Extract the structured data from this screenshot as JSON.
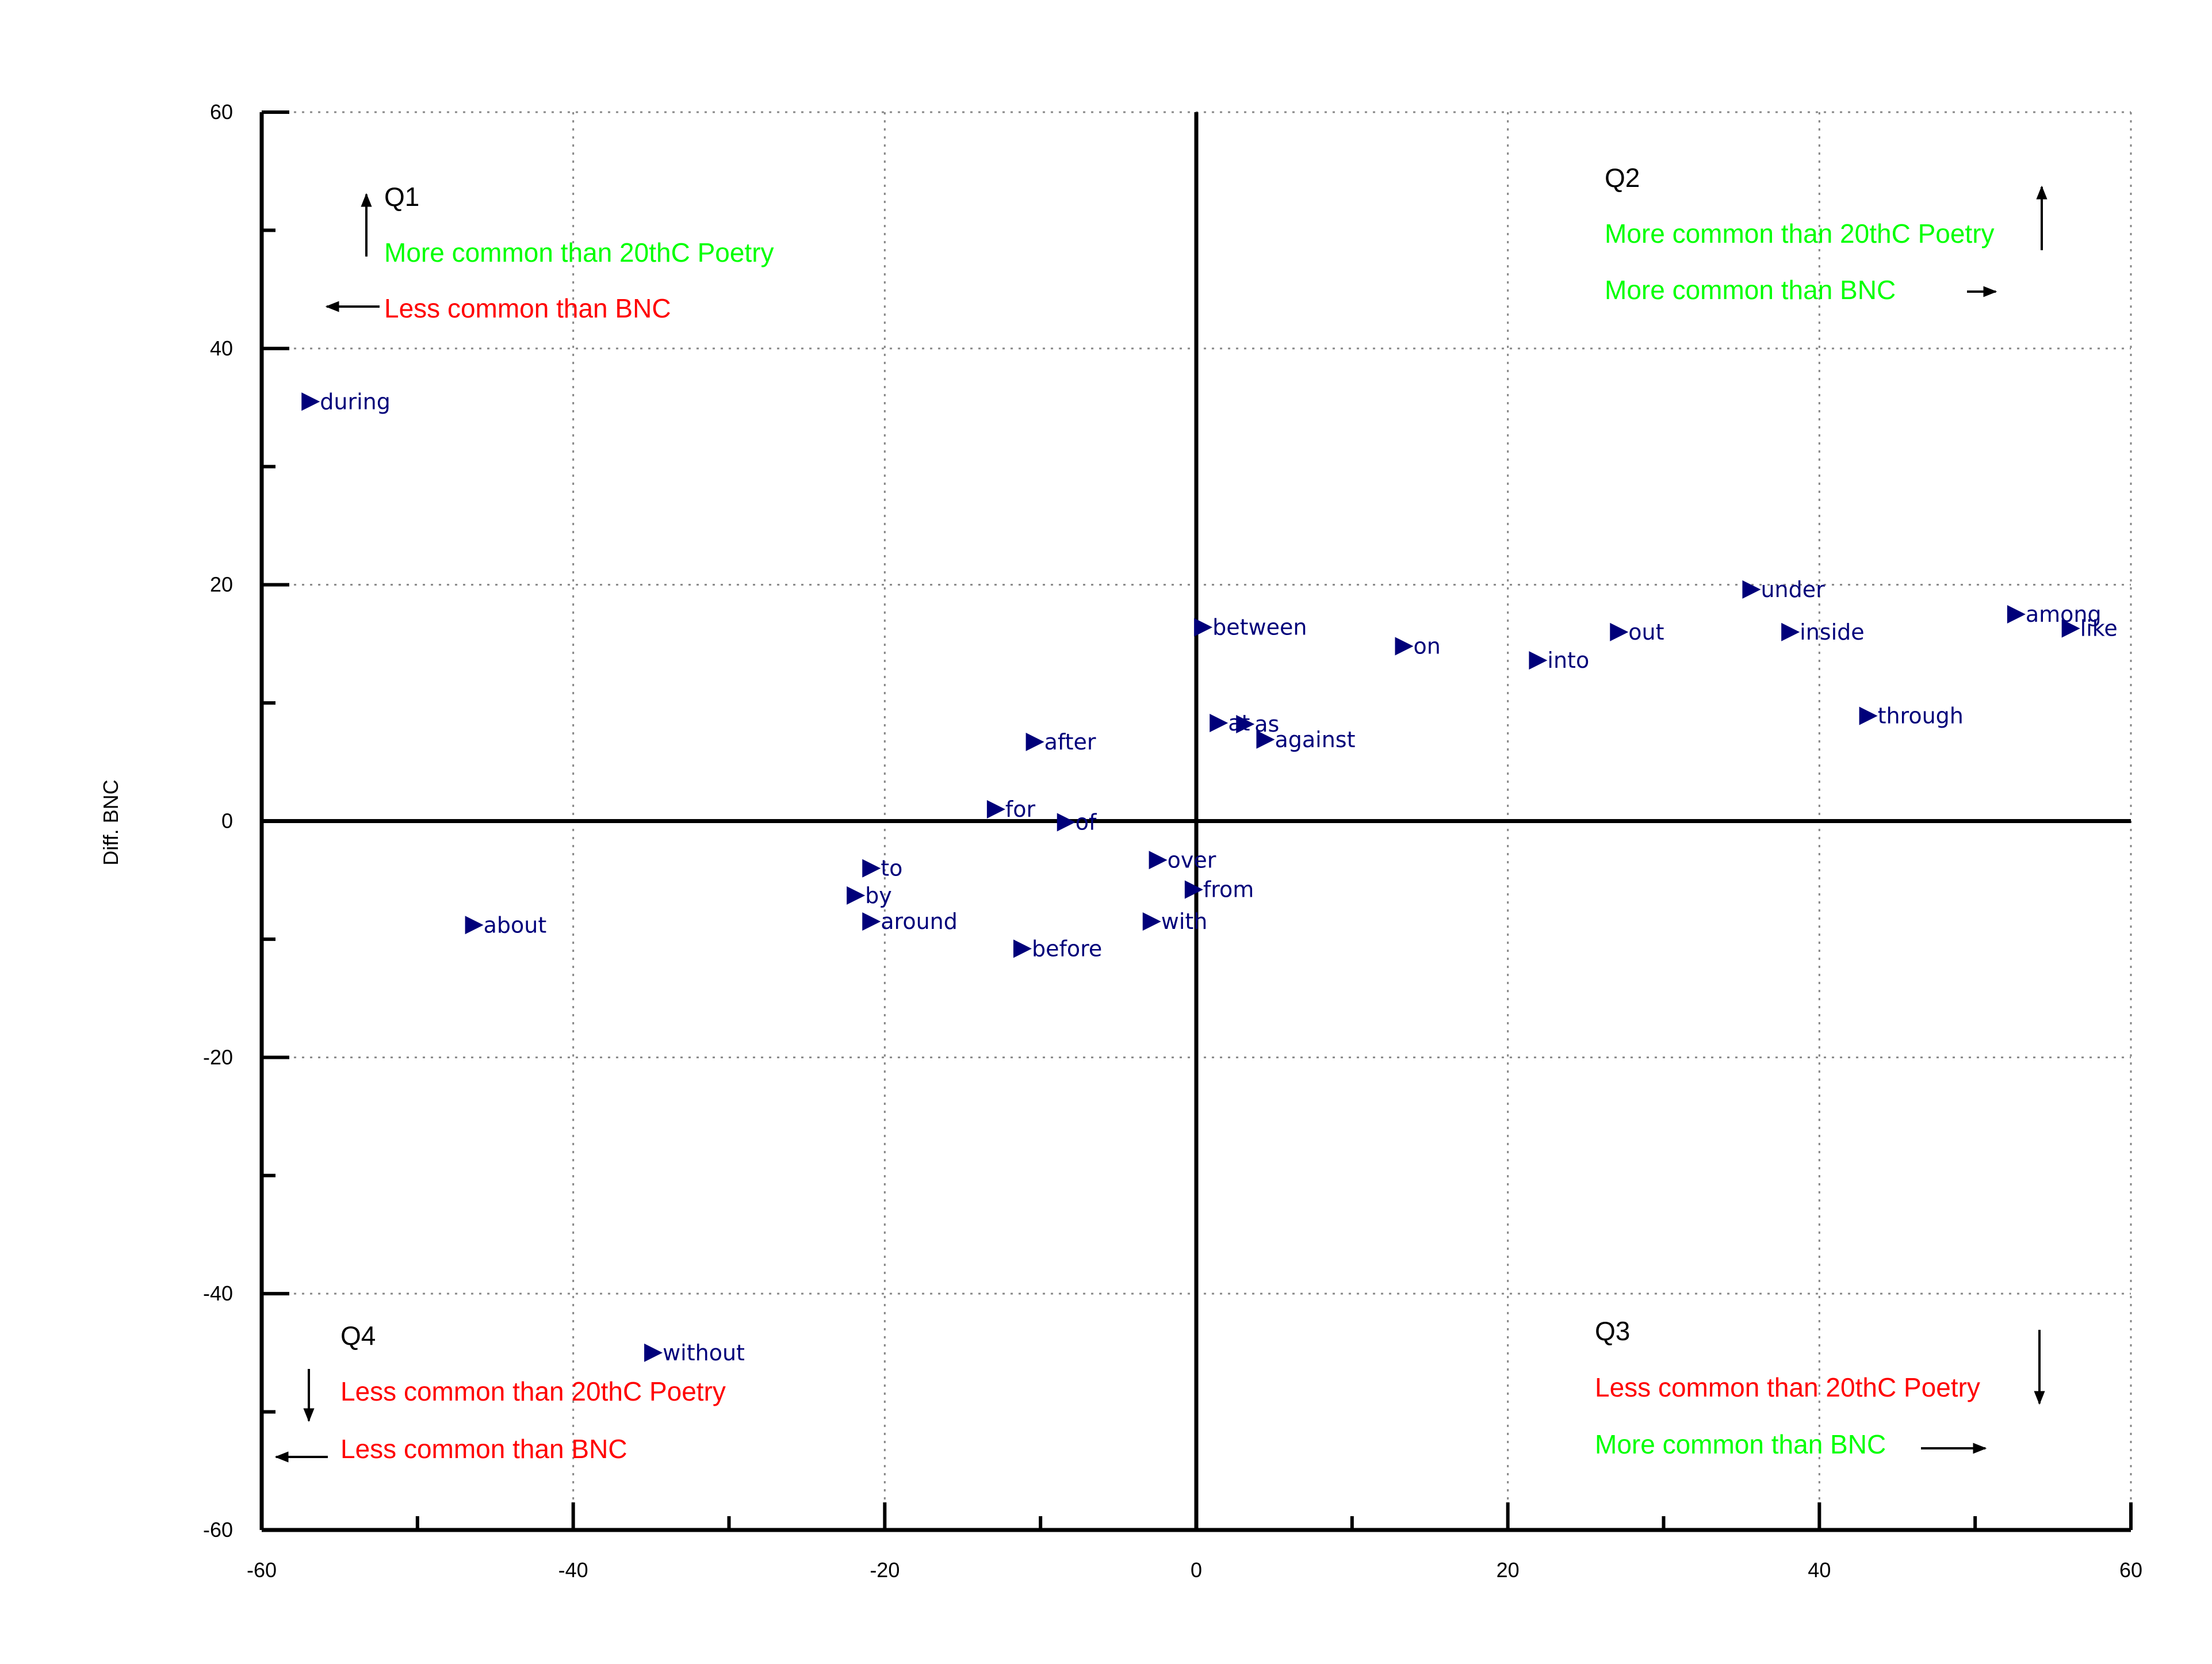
{
  "chart_data": {
    "type": "scatter",
    "title": "",
    "xlabel": "",
    "ylabel": "Diff. BNC",
    "xlim": [
      -60,
      60
    ],
    "ylim": [
      -60,
      60
    ],
    "xticks": [
      -60,
      -40,
      -20,
      0,
      20,
      40,
      60
    ],
    "yticks": [
      -60,
      -40,
      -20,
      0,
      20,
      40,
      60
    ],
    "xtick_labels": [
      "-60",
      "-40",
      "-20",
      "0",
      "20",
      "40",
      "60"
    ],
    "ytick_labels": [
      "-60",
      "-40",
      "-20",
      "0",
      "20",
      "40",
      "60"
    ],
    "x_minor_step": 10,
    "y_minor_step": 10,
    "grid": true,
    "marker": "triangle-right",
    "marker_color": "#00007a",
    "points": [
      {
        "label": "during",
        "x": -57,
        "y": 35.5
      },
      {
        "label": "about",
        "x": -46.5,
        "y": -8.8
      },
      {
        "label": "without",
        "x": -35,
        "y": -45
      },
      {
        "label": "to",
        "x": -21,
        "y": -4
      },
      {
        "label": "by",
        "x": -22,
        "y": -6.3
      },
      {
        "label": "around",
        "x": -21,
        "y": -8.5
      },
      {
        "label": "after",
        "x": -10.5,
        "y": 6.7
      },
      {
        "label": "for",
        "x": -13,
        "y": 1
      },
      {
        "label": "of",
        "x": -8.5,
        "y": -0.1
      },
      {
        "label": "before",
        "x": -11.3,
        "y": -10.8
      },
      {
        "label": "over",
        "x": -2.6,
        "y": -3.3
      },
      {
        "label": "from",
        "x": -0.3,
        "y": -5.8
      },
      {
        "label": "with",
        "x": -3,
        "y": -8.5
      },
      {
        "label": "between",
        "x": 0.3,
        "y": 16.4
      },
      {
        "label": "at",
        "x": 1.3,
        "y": 8.3
      },
      {
        "label": "as",
        "x": 3,
        "y": 8.2
      },
      {
        "label": "against",
        "x": 4.3,
        "y": 6.9
      },
      {
        "label": "on",
        "x": 13.2,
        "y": 14.8
      },
      {
        "label": "into",
        "x": 21.8,
        "y": 13.6
      },
      {
        "label": "out",
        "x": 27,
        "y": 16
      },
      {
        "label": "under",
        "x": 35.5,
        "y": 19.6
      },
      {
        "label": "inside",
        "x": 38,
        "y": 16
      },
      {
        "label": "through",
        "x": 43,
        "y": 8.9
      },
      {
        "label": "among",
        "x": 52.5,
        "y": 17.5
      },
      {
        "label": "like",
        "x": 56,
        "y": 16.3
      }
    ]
  },
  "quadrants": {
    "q1": {
      "title": "Q1",
      "line1": "More common than 20thC Poetry",
      "line1_color": "#00ff00",
      "line2": "Less common than BNC",
      "line2_color": "#ff0000"
    },
    "q2": {
      "title": "Q2",
      "line1": "More common than 20thC Poetry",
      "line1_color": "#00ff00",
      "line2": "More common than BNC",
      "line2_color": "#00ff00"
    },
    "q3": {
      "title": "Q3",
      "line1": "Less common than 20thC Poetry",
      "line1_color": "#ff0000",
      "line2": "More common than BNC",
      "line2_color": "#00ff00"
    },
    "q4": {
      "title": "Q4",
      "line1": "Less common than 20thC Poetry",
      "line1_color": "#ff0000",
      "line2": "Less common than BNC",
      "line2_color": "#ff0000"
    }
  }
}
